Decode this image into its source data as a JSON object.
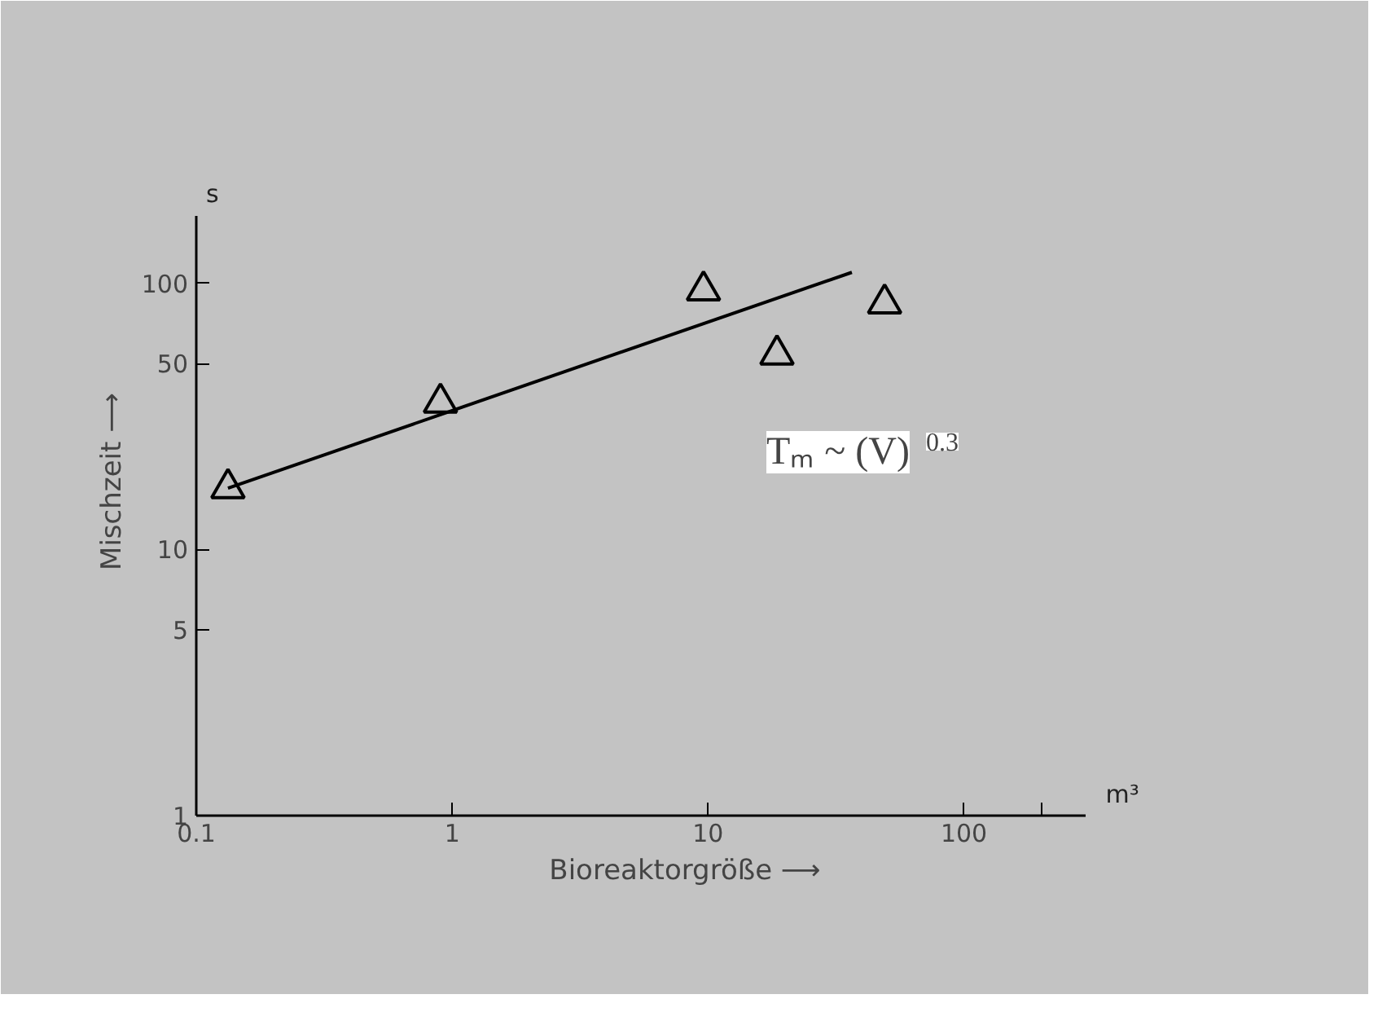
{
  "chart_data": {
    "type": "scatter",
    "xlabel": "Bioreaktorgröße ⟶",
    "ylabel": "Mischzeit ⟶",
    "log": "xy",
    "grid": false,
    "xlim": [
      0.1,
      300
    ],
    "ylim": [
      1,
      180
    ],
    "xticks": [
      {
        "value": 0.1,
        "label": "0.1"
      },
      1,
      10,
      100,
      {
        "value": 200,
        "label": null
      }
    ],
    "yticks": [
      1,
      5,
      10,
      50,
      100
    ],
    "annotations": [
      "m³",
      "s",
      "Tₘ ~ (V)$^{0.3}$"
    ],
    "series": [
      {
        "type": "line",
        "color": "#000000",
        "x": [
          0.133,
          36.5
        ],
        "values": [
          17,
          110
        ]
      },
      {
        "color": "#000000",
        "marker": "triangle",
        "x": [
          0.133,
          0.9,
          9.6,
          18.6,
          49
        ],
        "values": [
          17,
          35.6,
          94,
          54,
          84
        ]
      }
    ]
  }
}
